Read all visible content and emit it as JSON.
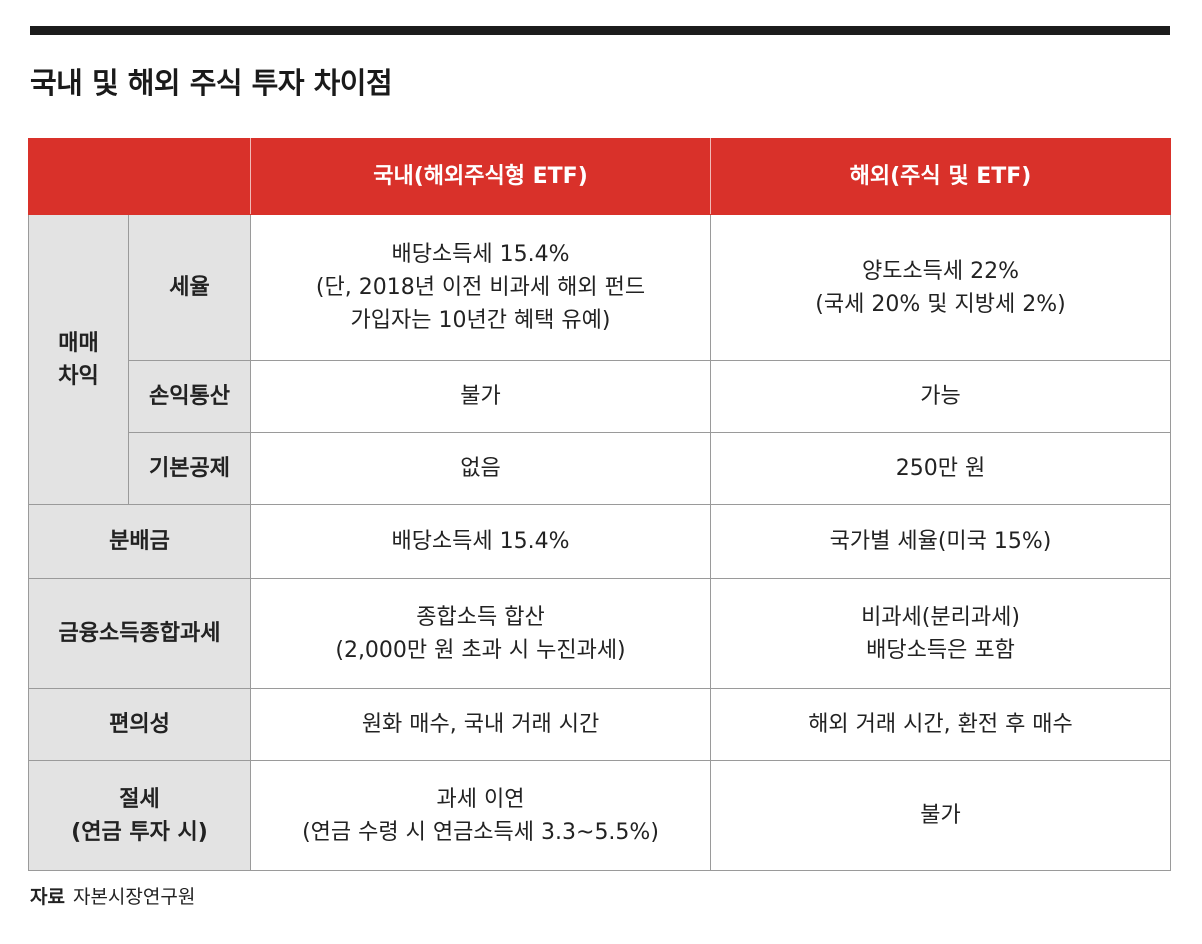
{
  "title": "국내 및 해외 주식 투자 차이점",
  "header": {
    "col1": "국내(해외주식형 ETF)",
    "col2": "해외(주식 및 ETF)"
  },
  "group_label": "매매\n차익",
  "rows": [
    {
      "label": "세율",
      "domestic": "배당소득세 15.4%\n(단, 2018년 이전 비과세 해외 펀드\n가입자는 10년간 혜택 유예)",
      "overseas": "양도소득세 22%\n(국세 20% 및 지방세 2%)"
    },
    {
      "label": "손익통산",
      "domestic": "불가",
      "overseas": "가능"
    },
    {
      "label": "기본공제",
      "domestic": "없음",
      "overseas": "250만 원"
    },
    {
      "label": "분배금",
      "domestic": "배당소득세 15.4%",
      "overseas": "국가별 세율(미국 15%)"
    },
    {
      "label": "금융소득종합과세",
      "domestic": "종합소득 합산\n(2,000만 원 초과 시 누진과세)",
      "overseas": "비과세(분리과세)\n배당소득은 포함"
    },
    {
      "label": "편의성",
      "domestic": "원화 매수, 국내 거래 시간",
      "overseas": "해외 거래 시간, 환전 후 매수"
    },
    {
      "label": "절세\n(연금 투자 시)",
      "domestic": "과세 이연\n(연금 수령 시 연금소득세 3.3~5.5%)",
      "overseas": "불가"
    }
  ],
  "source": {
    "label": "자료",
    "text": "자본시장연구원"
  }
}
